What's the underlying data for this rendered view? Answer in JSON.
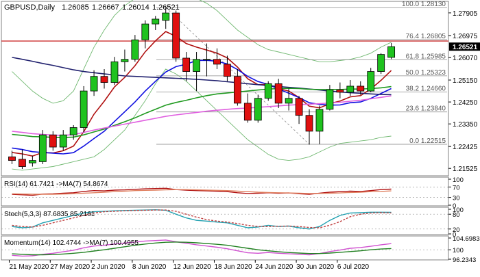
{
  "header": {
    "symbol": "GBPUSD,Daily",
    "ohlc": [
      "1.26085",
      "1.26667",
      "1.26014",
      "1.26521"
    ]
  },
  "colors": {
    "bull": "#1fc21f",
    "bear": "#e01010",
    "grid": "#c8c8c8",
    "ma_red": "#b01010",
    "ma_blue": "#1010e0",
    "ma_green": "#209a20",
    "ma_navy": "#20206e",
    "ma_pink": "#e060e0",
    "hline_red": "#d04040",
    "bands": "#70b870",
    "rsi": "#b01010",
    "rsi_ma": "#e08060",
    "stoch_main": "#20a0b0",
    "stoch_signal": "#c04040",
    "momentum": "#d050d0",
    "momentum_ma": "#208020",
    "last_price_bg": "#000000"
  },
  "chart_data": [
    {
      "type": "candlestick",
      "panel": "price",
      "ylim": [
        1.2125,
        1.2835
      ],
      "y_ticks": [
        "1.27905",
        "1.26975",
        "1.26070",
        "1.25150",
        "1.24250",
        "1.23350",
        "1.22425",
        "1.21525"
      ],
      "last_price": "1.26521",
      "fib_levels": [
        {
          "label": "100.0 1.28130",
          "value": 1.2813
        },
        {
          "label": "76.4 1.26805",
          "value": 1.26805
        },
        {
          "label": "61.8 1.25985",
          "value": 1.25985
        },
        {
          "label": "50.0 1.25323",
          "value": 1.25323
        },
        {
          "label": "38.2 1.24660",
          "value": 1.2466
        },
        {
          "label": "23.6 1.23840",
          "value": 1.2384
        },
        {
          "label": "0.0 1.22515",
          "value": 1.22515
        }
      ],
      "horizontal_line": 1.2675,
      "candles": [
        {
          "o": 1.22,
          "h": 1.2225,
          "l": 1.217,
          "c": 1.2185
        },
        {
          "o": 1.219,
          "h": 1.223,
          "l": 1.215,
          "c": 1.216
        },
        {
          "o": 1.2175,
          "h": 1.2205,
          "l": 1.216,
          "c": 1.2185
        },
        {
          "o": 1.218,
          "h": 1.231,
          "l": 1.217,
          "c": 1.229
        },
        {
          "o": 1.229,
          "h": 1.2305,
          "l": 1.2225,
          "c": 1.224
        },
        {
          "o": 1.224,
          "h": 1.231,
          "l": 1.2225,
          "c": 1.229
        },
        {
          "o": 1.229,
          "h": 1.233,
          "l": 1.227,
          "c": 1.232
        },
        {
          "o": 1.232,
          "h": 1.249,
          "l": 1.23,
          "c": 1.247
        },
        {
          "o": 1.247,
          "h": 1.2555,
          "l": 1.245,
          "c": 1.253
        },
        {
          "o": 1.253,
          "h": 1.256,
          "l": 1.248,
          "c": 1.2505
        },
        {
          "o": 1.2505,
          "h": 1.261,
          "l": 1.2495,
          "c": 1.259
        },
        {
          "o": 1.259,
          "h": 1.264,
          "l": 1.255,
          "c": 1.26
        },
        {
          "o": 1.26,
          "h": 1.27,
          "l": 1.259,
          "c": 1.268
        },
        {
          "o": 1.268,
          "h": 1.276,
          "l": 1.2645,
          "c": 1.2745
        },
        {
          "o": 1.2745,
          "h": 1.2778,
          "l": 1.272,
          "c": 1.2765
        },
        {
          "o": 1.276,
          "h": 1.2813,
          "l": 1.2725,
          "c": 1.279
        },
        {
          "o": 1.279,
          "h": 1.28,
          "l": 1.259,
          "c": 1.2605
        },
        {
          "o": 1.2605,
          "h": 1.263,
          "l": 1.251,
          "c": 1.255
        },
        {
          "o": 1.255,
          "h": 1.263,
          "l": 1.247,
          "c": 1.26
        },
        {
          "o": 1.26,
          "h": 1.2665,
          "l": 1.253,
          "c": 1.26
        },
        {
          "o": 1.26,
          "h": 1.2645,
          "l": 1.256,
          "c": 1.258
        },
        {
          "o": 1.258,
          "h": 1.2615,
          "l": 1.251,
          "c": 1.253
        },
        {
          "o": 1.253,
          "h": 1.256,
          "l": 1.241,
          "c": 1.242
        },
        {
          "o": 1.242,
          "h": 1.246,
          "l": 1.234,
          "c": 1.235
        },
        {
          "o": 1.235,
          "h": 1.2455,
          "l": 1.234,
          "c": 1.244
        },
        {
          "o": 1.244,
          "h": 1.251,
          "l": 1.243,
          "c": 1.25
        },
        {
          "o": 1.25,
          "h": 1.252,
          "l": 1.24,
          "c": 1.242
        },
        {
          "o": 1.242,
          "h": 1.248,
          "l": 1.239,
          "c": 1.244
        },
        {
          "o": 1.244,
          "h": 1.245,
          "l": 1.2335,
          "c": 1.237
        },
        {
          "o": 1.237,
          "h": 1.2395,
          "l": 1.225,
          "c": 1.2305
        },
        {
          "o": 1.2305,
          "h": 1.241,
          "l": 1.2252,
          "c": 1.2395
        },
        {
          "o": 1.2395,
          "h": 1.2495,
          "l": 1.239,
          "c": 1.2475
        },
        {
          "o": 1.2475,
          "h": 1.2505,
          "l": 1.244,
          "c": 1.2465
        },
        {
          "o": 1.2465,
          "h": 1.2515,
          "l": 1.245,
          "c": 1.249
        },
        {
          "o": 1.249,
          "h": 1.251,
          "l": 1.2455,
          "c": 1.247
        },
        {
          "o": 1.247,
          "h": 1.2565,
          "l": 1.2465,
          "c": 1.255
        },
        {
          "o": 1.255,
          "h": 1.2625,
          "l": 1.254,
          "c": 1.262
        },
        {
          "o": 1.2608,
          "h": 1.2667,
          "l": 1.2601,
          "c": 1.2652
        }
      ],
      "moving_averages": [
        {
          "color_key": "ma_red",
          "values": [
            1.2218,
            1.2212,
            1.2203,
            1.2218,
            1.2216,
            1.2225,
            1.2244,
            1.2303,
            1.2375,
            1.2428,
            1.2487,
            1.2526,
            1.2574,
            1.2631,
            1.2676,
            1.2714,
            1.2694,
            1.2665,
            1.265,
            1.2638,
            1.2625,
            1.2606,
            1.2568,
            1.252,
            1.2496,
            1.2497,
            1.248,
            1.247,
            1.2443,
            1.2408,
            1.2401,
            1.2418,
            1.2429,
            1.2446,
            1.2451,
            1.2478,
            1.2514,
            1.2554
          ]
        },
        {
          "color_key": "ma_blue",
          "values": [
            1.2236,
            1.223,
            1.2221,
            1.2218,
            1.2215,
            1.2212,
            1.2217,
            1.2244,
            1.2275,
            1.2305,
            1.2345,
            1.2385,
            1.2425,
            1.247,
            1.251,
            1.2548,
            1.257,
            1.258,
            1.2595,
            1.2596,
            1.2592,
            1.2581,
            1.2558,
            1.253,
            1.2509,
            1.2497,
            1.2478,
            1.2461,
            1.2443,
            1.2422,
            1.2415,
            1.2412,
            1.2413,
            1.2422,
            1.2425,
            1.244,
            1.246,
            1.248
          ]
        },
        {
          "color_key": "ma_navy",
          "values": [
            1.2608,
            1.26,
            1.2592,
            1.2583,
            1.2575,
            1.2566,
            1.2557,
            1.255,
            1.2545,
            1.254,
            1.2536,
            1.2532,
            1.253,
            1.2528,
            1.2526,
            1.2524,
            1.2522,
            1.252,
            1.2518,
            1.2515,
            1.2512,
            1.2508,
            1.2504,
            1.25,
            1.2496,
            1.2492,
            1.2488,
            1.2485,
            1.2482,
            1.2478,
            1.2474,
            1.247,
            1.2466,
            1.2463,
            1.2461,
            1.2458,
            1.2456,
            1.2455
          ]
        },
        {
          "color_key": "ma_green",
          "values": [
            1.2292,
            1.2288,
            1.2283,
            1.2282,
            1.228,
            1.2279,
            1.2281,
            1.229,
            1.2302,
            1.2314,
            1.2329,
            1.2344,
            1.236,
            1.2378,
            1.2395,
            1.2412,
            1.2423,
            1.2432,
            1.2442,
            1.2451,
            1.2458,
            1.2462,
            1.2466,
            1.247,
            1.2474,
            1.2478,
            1.248,
            1.2481,
            1.248,
            1.2477,
            1.2476,
            1.2476,
            1.2476,
            1.2478,
            1.2478,
            1.248,
            1.2483,
            1.2488
          ]
        },
        {
          "color_key": "ma_pink",
          "values": [
            1.2305,
            1.23,
            1.2295,
            1.2292,
            1.2289,
            1.2288,
            1.2291,
            1.23,
            1.231,
            1.2318,
            1.2326,
            1.2334,
            1.2342,
            1.235,
            1.2358,
            1.2366,
            1.2372,
            1.2377,
            1.2382,
            1.2387,
            1.2391,
            1.2395,
            1.2398,
            1.24,
            1.2403,
            1.2406,
            1.2409,
            1.2412,
            1.2414,
            1.2416,
            1.2418,
            1.2421,
            1.2424,
            1.2428,
            1.2432,
            1.2438,
            1.2444,
            1.245
          ]
        }
      ],
      "bollinger_upper": [
        1.255,
        1.251,
        1.247,
        1.244,
        1.242,
        1.243,
        1.247,
        1.256,
        1.265,
        1.272,
        1.278,
        1.282,
        1.285,
        1.287,
        1.288,
        1.2885,
        1.288,
        1.287,
        1.285,
        1.283,
        1.28,
        1.276,
        1.272,
        1.269,
        1.266,
        1.264,
        1.263,
        1.262,
        1.261,
        1.26,
        1.259,
        1.259,
        1.2595,
        1.26,
        1.261,
        1.2625,
        1.265,
        1.267
      ],
      "bollinger_lower": [
        1.215,
        1.2145,
        1.215,
        1.2155,
        1.216,
        1.217,
        1.218,
        1.219,
        1.22,
        1.223,
        1.227,
        1.231,
        1.237,
        1.243,
        1.25,
        1.256,
        1.254,
        1.251,
        1.247,
        1.243,
        1.239,
        1.235,
        1.231,
        1.227,
        1.224,
        1.221,
        1.219,
        1.2185,
        1.219,
        1.22,
        1.222,
        1.224,
        1.2255,
        1.226,
        1.2265,
        1.227,
        1.228,
        1.2285
      ]
    },
    {
      "type": "line",
      "panel": "rsi",
      "title": "RSI(14) 61.7421 ->MA(7) 54.8674",
      "ylim": [
        0,
        100
      ],
      "y_ticks": [
        "100",
        "70",
        "30",
        "0"
      ],
      "series": [
        {
          "color_key": "rsi",
          "values": [
            42,
            40,
            38,
            43,
            44,
            46,
            48,
            53,
            56,
            55,
            58,
            59,
            61,
            63,
            64,
            65,
            60,
            58,
            56,
            55,
            54,
            52,
            48,
            45,
            46,
            48,
            46,
            47,
            44,
            42,
            46,
            50,
            52,
            54,
            53,
            56,
            60,
            61.74
          ]
        },
        {
          "color_key": "rsi_ma",
          "values": [
            44,
            43,
            42,
            42,
            42,
            43,
            44,
            46,
            48,
            50,
            52,
            54,
            56,
            57,
            58,
            59,
            60,
            60,
            59,
            58,
            57,
            56,
            54,
            52,
            50,
            49,
            48,
            47,
            46,
            45,
            45,
            46,
            47,
            49,
            50,
            52,
            53,
            54.87
          ]
        }
      ]
    },
    {
      "type": "line",
      "panel": "stochastic",
      "title": "Stoch(5,3,3) 87.6835 85.2161",
      "ylim": [
        0,
        100
      ],
      "y_ticks": [
        "100",
        "80",
        "20",
        "0"
      ],
      "series": [
        {
          "color_key": "stoch_main",
          "values": [
            30,
            25,
            28,
            45,
            55,
            65,
            75,
            85,
            90,
            92,
            94,
            95,
            96,
            97,
            98,
            96,
            80,
            65,
            55,
            52,
            48,
            45,
            35,
            25,
            28,
            35,
            30,
            32,
            25,
            20,
            30,
            55,
            75,
            85,
            86,
            88,
            88,
            87.68
          ]
        },
        {
          "color_key": "stoch_signal",
          "values": [
            35,
            30,
            28,
            35,
            45,
            55,
            65,
            75,
            85,
            90,
            92,
            94,
            95,
            96,
            97,
            97,
            92,
            80,
            68,
            58,
            52,
            48,
            42,
            35,
            30,
            30,
            31,
            32,
            30,
            26,
            25,
            35,
            50,
            70,
            80,
            85,
            86,
            85.22
          ]
        }
      ]
    },
    {
      "type": "line",
      "panel": "momentum",
      "title": "Momentum(14) 102.4744 ->MA(7) 100.4955",
      "ylim": [
        96.2343,
        104.6983
      ],
      "y_ticks": [
        "104.6983",
        "100",
        "96.2343"
      ],
      "series": [
        {
          "color_key": "momentum",
          "values": [
            97.8,
            97.5,
            97.6,
            98.2,
            98.6,
            99.2,
            99.8,
            100.8,
            101.5,
            101.8,
            102.3,
            102.7,
            103.1,
            103.5,
            103.7,
            103.9,
            103.2,
            102.6,
            102.0,
            101.5,
            101.0,
            100.4,
            99.6,
            98.8,
            98.6,
            98.9,
            98.6,
            98.4,
            98.2,
            98.0,
            98.5,
            99.3,
            99.9,
            100.6,
            100.9,
            101.4,
            102.0,
            102.47
          ]
        },
        {
          "color_key": "momentum_ma",
          "values": [
            98.4,
            98.2,
            98.0,
            98.0,
            98.1,
            98.3,
            98.6,
            99.0,
            99.5,
            100.0,
            100.6,
            101.2,
            101.8,
            102.3,
            102.7,
            103.0,
            103.1,
            103.0,
            102.8,
            102.5,
            102.2,
            101.8,
            101.2,
            100.6,
            100.0,
            99.6,
            99.2,
            98.9,
            98.7,
            98.5,
            98.5,
            98.7,
            99.0,
            99.3,
            99.6,
            100.0,
            100.3,
            100.5
          ]
        }
      ]
    }
  ],
  "x_axis": {
    "labels": [
      {
        "text": "21 May 2020",
        "index": 0
      },
      {
        "text": "27 May 2020",
        "index": 4
      },
      {
        "text": "2 Jun 2020",
        "index": 8
      },
      {
        "text": "8 Jun 2020",
        "index": 12
      },
      {
        "text": "12 Jun 2020",
        "index": 16
      },
      {
        "text": "18 Jun 2020",
        "index": 20
      },
      {
        "text": "24 Jun 2020",
        "index": 24
      },
      {
        "text": "30 Jun 2020",
        "index": 28
      },
      {
        "text": "6 Jul 2020",
        "index": 32
      }
    ]
  }
}
